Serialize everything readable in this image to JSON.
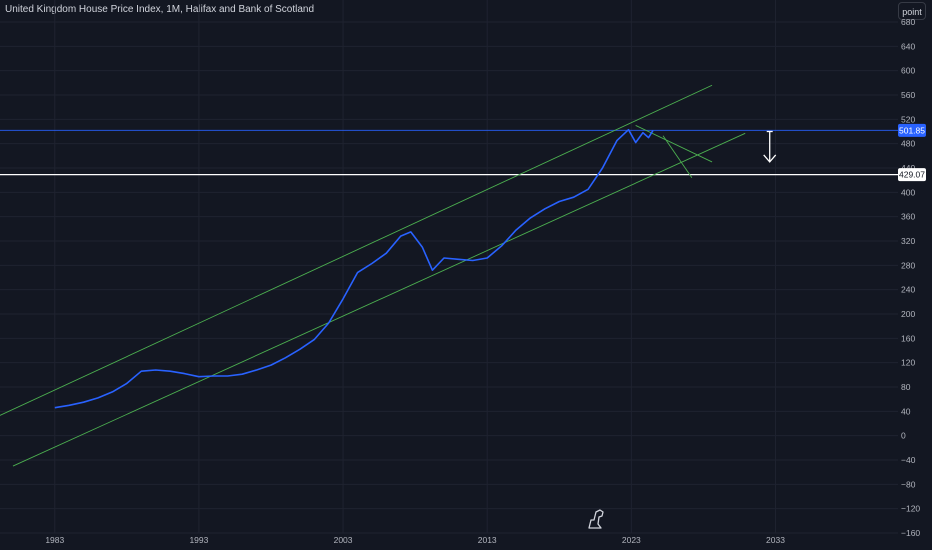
{
  "header": {
    "title": "United Kingdom House Price Index, 1M, Halifax and Bank of Scotland",
    "unit_button": "point"
  },
  "colors": {
    "background": "#131722",
    "grid": "#1f2330",
    "series": "#2962ff",
    "channel": "#4caf50",
    "last_price_line": "#2962ff",
    "horizontal_line": "#ffffff",
    "arrow": "#ffffff"
  },
  "watermark_icon": "tradingview-logo-icon",
  "price_tags": {
    "last_price": "501.85",
    "horizontal_line": "429.07"
  },
  "chart_data": {
    "type": "line",
    "title": "United Kingdom House Price Index, 1M, Halifax and Bank of Scotland",
    "xlabel": "",
    "ylabel": "",
    "xlim": [
      1979.2,
      2041.5
    ],
    "ylim": [
      -160,
      680
    ],
    "grid": true,
    "x_ticks": [
      "1983",
      "1993",
      "2003",
      "2013",
      "2023",
      "2033"
    ],
    "y_ticks": [
      "680",
      "640",
      "600",
      "560",
      "520",
      "480",
      "440",
      "400",
      "360",
      "320",
      "280",
      "240",
      "200",
      "160",
      "120",
      "80",
      "40",
      "0",
      "−40",
      "−80",
      "−120",
      "−160"
    ],
    "series": [
      {
        "values": [
          [
            1983,
            46
          ],
          [
            1984,
            50
          ],
          [
            1985,
            55
          ],
          [
            1986,
            62
          ],
          [
            1987,
            72
          ],
          [
            1988,
            86
          ],
          [
            1989,
            106
          ],
          [
            1990,
            108
          ],
          [
            1991,
            106
          ],
          [
            1992,
            102
          ],
          [
            1993,
            97
          ],
          [
            1994,
            98
          ],
          [
            1995,
            98
          ],
          [
            1996,
            101
          ],
          [
            1997,
            108
          ],
          [
            1998,
            116
          ],
          [
            1999,
            128
          ],
          [
            2000,
            142
          ],
          [
            2001,
            158
          ],
          [
            2002,
            185
          ],
          [
            2003,
            225
          ],
          [
            2004,
            268
          ],
          [
            2005,
            283
          ],
          [
            2006,
            300
          ],
          [
            2007,
            328
          ],
          [
            2007.7,
            335
          ],
          [
            2008.5,
            310
          ],
          [
            2009.2,
            272
          ],
          [
            2010,
            292
          ],
          [
            2011,
            290
          ],
          [
            2012,
            288
          ],
          [
            2013,
            292
          ],
          [
            2014,
            312
          ],
          [
            2015,
            338
          ],
          [
            2016,
            358
          ],
          [
            2017,
            373
          ],
          [
            2018,
            385
          ],
          [
            2019,
            392
          ],
          [
            2020,
            405
          ],
          [
            2021,
            440
          ],
          [
            2022,
            485
          ],
          [
            2022.8,
            503
          ],
          [
            2023.3,
            482
          ],
          [
            2023.8,
            498
          ],
          [
            2024.2,
            490
          ],
          [
            2024.5,
            501.85
          ]
        ]
      }
    ],
    "drawings": {
      "channel_upper": [
        [
          1977.9,
          19
        ],
        [
          2028.6,
          576
        ]
      ],
      "channel_lower": [
        [
          1980.1,
          -50
        ],
        [
          2030.9,
          497
        ]
      ],
      "triangle_lines": [
        [
          [
            2023.3,
            510
          ],
          [
            2028.6,
            450
          ]
        ],
        [
          [
            2025.2,
            493
          ],
          [
            2027.2,
            424
          ]
        ]
      ],
      "horizontal_line": 429.07,
      "last_price_line": 501.85,
      "arrow": {
        "x": 2032.6,
        "from": 500,
        "to": 450
      }
    }
  }
}
